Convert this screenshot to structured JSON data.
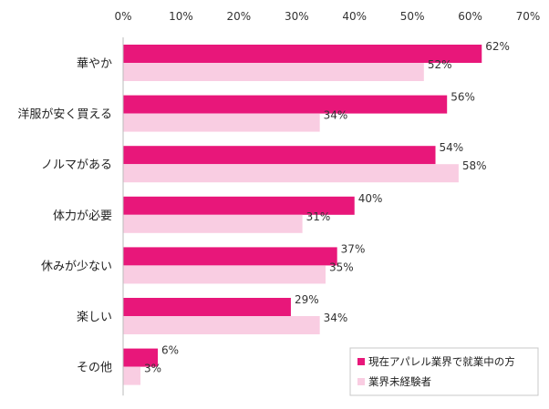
{
  "chart_data": {
    "type": "bar",
    "orientation": "horizontal",
    "categories": [
      "華やか",
      "洋服が安く買える",
      "ノルマがある",
      "体力が必要",
      "休みが少ない",
      "楽しい",
      "その他"
    ],
    "series": [
      {
        "name": "現在アパレル業界で就業中の方",
        "values": [
          62,
          56,
          54,
          40,
          37,
          29,
          6
        ],
        "color": "#e8177a"
      },
      {
        "name": "業界未経験者",
        "values": [
          52,
          34,
          58,
          31,
          35,
          34,
          3
        ],
        "color": "#f9cde2"
      }
    ],
    "xlim": [
      0,
      70
    ],
    "x_ticks": [
      0,
      10,
      20,
      30,
      40,
      50,
      60,
      70
    ],
    "tick_suffix": "%",
    "value_suffix": "%",
    "xaxis_position": "top",
    "grid": false,
    "legend_position": "bottom-right",
    "title": "",
    "xlabel": "",
    "ylabel": ""
  }
}
